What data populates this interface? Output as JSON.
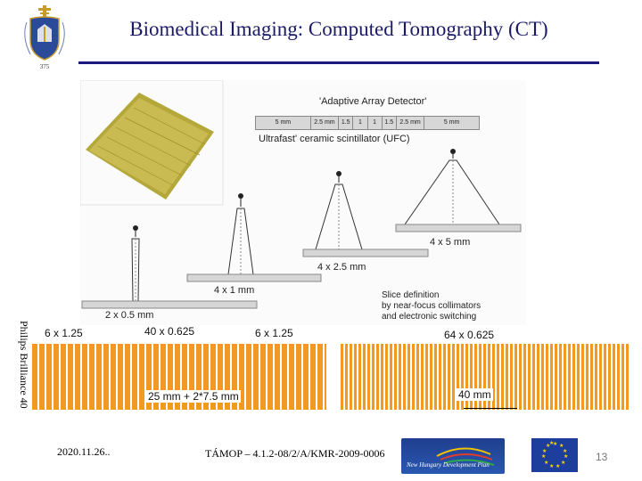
{
  "title": "Biomedical Imaging: Computed Tomography (CT)",
  "logo": {
    "caption": "375"
  },
  "figure": {
    "detector_label": "'Adaptive Array Detector'",
    "scintillator_label": "Ultrafast' ceramic scintillator (UFC)",
    "detector_cells": [
      "5 mm",
      "2.5 mm",
      "1.5",
      "1",
      "1",
      "1.5",
      "2.5 mm",
      "5 mm"
    ],
    "beam_labels": [
      "2 x 0.5 mm",
      "4 x 1 mm",
      "4 x 2.5 mm",
      "4 x 5 mm"
    ],
    "slice_definition": [
      "Slice definition",
      "by near-focus collimators",
      "and electronic switching"
    ]
  },
  "vertical_label": "Philips Brilliance 40",
  "slices": {
    "left_outer": "6 x 1.25",
    "left_inner": "40 x 0.625",
    "right_outer": "6 x 1.25",
    "right_inner": "64 x 0.625"
  },
  "coverage": {
    "left": "25 mm + 2*7.5 mm",
    "right": "40 mm"
  },
  "footer": {
    "date": "2020.11.26..",
    "project": "TÁMOP – 4.1.2-08/2/A/KMR-2009-0006",
    "page_number": "13",
    "plan_line1": "",
    "plan_line2": "New Hungary Development Plan"
  },
  "colors": {
    "title": "#1a1a66",
    "rule": "#1a1a80",
    "stripe": "#f39a1e",
    "eu_blue": "#1d3e9c"
  }
}
